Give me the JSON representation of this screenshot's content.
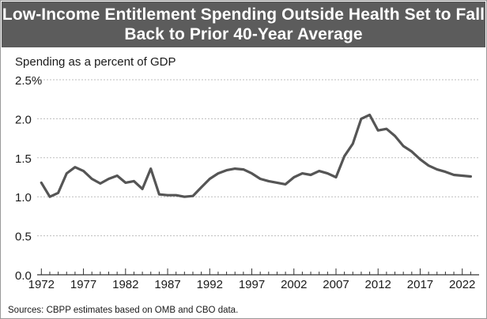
{
  "title_lines": [
    "Low-Income Entitlement Spending Outside Health Set to Fall",
    "Back to Prior 40-Year Average"
  ],
  "source_note": "Sources:  CBPP estimates based on OMB and CBO data.",
  "colors": {
    "title_bar": "#5c5c5c",
    "title_text": "#ffffff",
    "line": "#555555",
    "grid": "#bdbdbd",
    "text": "#1a1a1a"
  },
  "chart_data": {
    "type": "line",
    "title": "Low-Income Entitlement Spending Outside Health Set to Fall Back to Prior 40-Year Average",
    "xlabel": "",
    "ylabel": "Spending as a percent of GDP",
    "ylim": [
      0,
      2.5
    ],
    "xlim": [
      1971.5,
      2024
    ],
    "yticks": [
      0,
      0.5,
      1.0,
      1.5,
      2.0,
      2.5
    ],
    "ytick_labels": [
      "0.0",
      "0.5",
      "1.0",
      "1.5",
      "2.0",
      "2.5%"
    ],
    "xticks": [
      1972,
      1977,
      1982,
      1987,
      1992,
      1997,
      2002,
      2007,
      2012,
      2017,
      2022
    ],
    "xtick_labels": [
      "1972",
      "1977",
      "1982",
      "1987",
      "1992",
      "1997",
      "2002",
      "2007",
      "2012",
      "2017",
      "2022"
    ],
    "grid": true,
    "legend": "none",
    "series": [
      {
        "x": [
          1972,
          1973,
          1974,
          1975,
          1976,
          1977,
          1978,
          1979,
          1980,
          1981,
          1982,
          1983,
          1984,
          1985,
          1986,
          1987,
          1988,
          1989,
          1990,
          1991,
          1992,
          1993,
          1994,
          1995,
          1996,
          1997,
          1998,
          1999,
          2000,
          2001,
          2002,
          2003,
          2004,
          2005,
          2006,
          2007,
          2008,
          2009,
          2010,
          2011,
          2012,
          2013,
          2014,
          2015,
          2016,
          2017,
          2018,
          2019,
          2020,
          2021,
          2022,
          2023
        ],
        "values": [
          1.18,
          1.0,
          1.05,
          1.3,
          1.38,
          1.33,
          1.23,
          1.17,
          1.23,
          1.27,
          1.18,
          1.2,
          1.1,
          1.36,
          1.03,
          1.02,
          1.02,
          1.0,
          1.01,
          1.12,
          1.23,
          1.3,
          1.34,
          1.36,
          1.35,
          1.3,
          1.23,
          1.2,
          1.18,
          1.16,
          1.25,
          1.3,
          1.28,
          1.33,
          1.3,
          1.25,
          1.52,
          1.68,
          2.0,
          2.05,
          1.85,
          1.87,
          1.78,
          1.65,
          1.58,
          1.48,
          1.4,
          1.35,
          1.32,
          1.28,
          1.27,
          1.26
        ]
      }
    ]
  }
}
